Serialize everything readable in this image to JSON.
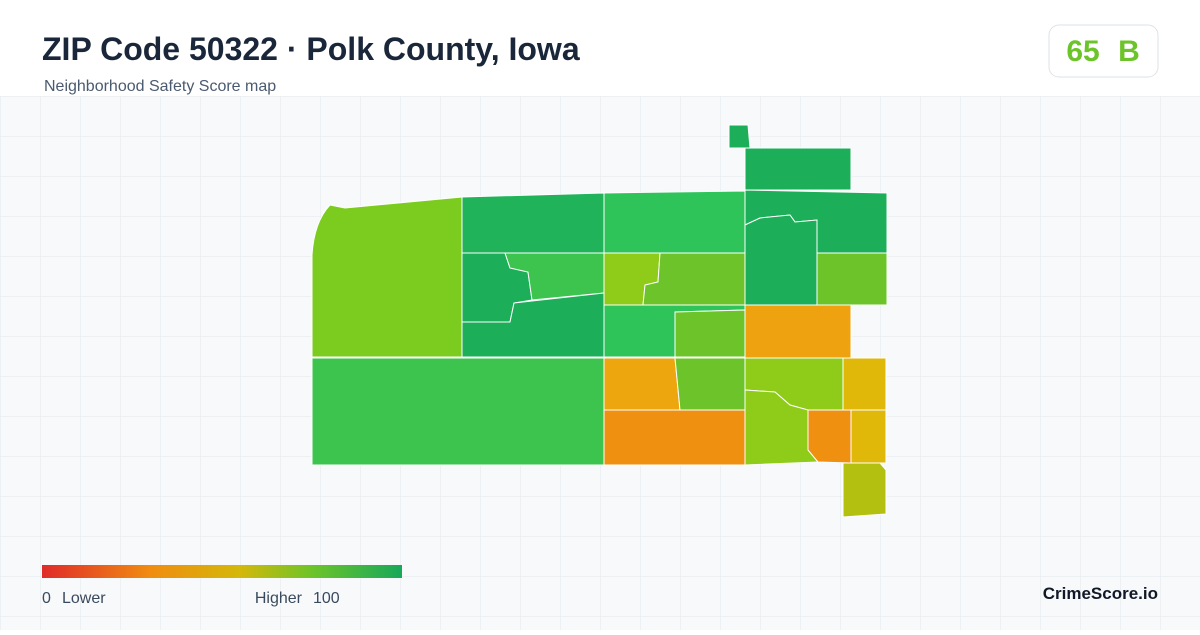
{
  "header": {
    "title": "ZIP Code 50322 · Polk County, Iowa",
    "subtitle": "Neighborhood Safety Score map"
  },
  "badge": {
    "score": 65,
    "grade": "B"
  },
  "legend": {
    "min": 0,
    "min_label": "Lower",
    "max_label": "Higher",
    "max": 100
  },
  "brand": "CrimeScore.io"
}
